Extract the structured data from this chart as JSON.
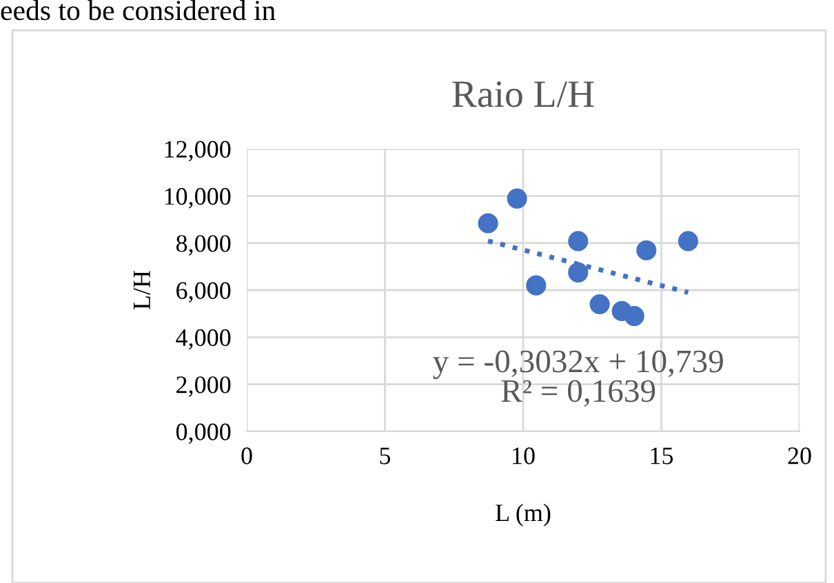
{
  "chart_data": {
    "type": "scatter",
    "title": "Raio L/H",
    "xlabel": "L (m)",
    "ylabel": "L/H",
    "annotations": [
      "eeds to be considered in",
      "y = -0,3032x + 10,739\nR² = 0,1639"
    ],
    "series": [
      {
        "color": "#4472c4",
        "marker": "circle",
        "x": [
          8.73,
          9.78,
          10.47,
          11.99,
          11.99,
          12.77,
          13.57,
          14.02,
          14.46,
          15.97
        ],
        "values": [
          8.84,
          9.89,
          6.2,
          8.08,
          6.75,
          5.4,
          5.11,
          4.9,
          7.69,
          8.08
        ]
      },
      {
        "type": "line",
        "color": "#4472c4",
        "line_style": "dotted",
        "marker": "none",
        "x": [
          8.73,
          15.97
        ],
        "values": [
          8.09,
          5.9
        ]
      }
    ],
    "xlim": [
      0,
      20
    ],
    "xticks": [
      0,
      5,
      10,
      15,
      20
    ],
    "ylim": [
      0,
      12
    ],
    "yticks": [
      {
        "value": 0,
        "label": "0,000"
      },
      {
        "value": 2,
        "label": "2,000"
      },
      {
        "value": 4,
        "label": "4,000"
      },
      {
        "value": 6,
        "label": "6,000"
      },
      {
        "value": 8,
        "label": "8,000"
      },
      {
        "value": 10,
        "label": "10,000"
      },
      {
        "value": 12,
        "label": "12,000"
      }
    ],
    "grid": true,
    "legend": false
  }
}
